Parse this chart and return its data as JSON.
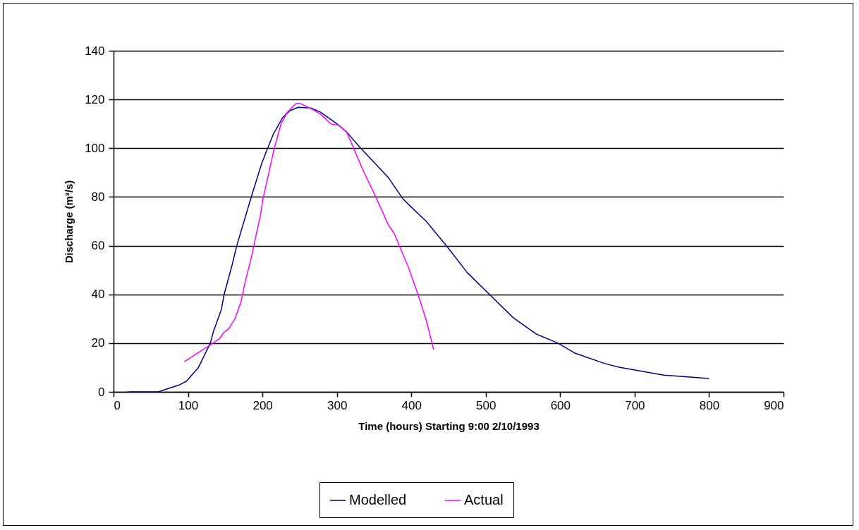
{
  "chart_data": {
    "type": "line",
    "xlabel": "Time (hours) Starting 9:00 2/10/1993",
    "ylabel": "Discharge (m³/s)",
    "xlim": [
      0,
      900
    ],
    "xticks": [
      0,
      100,
      200,
      300,
      400,
      500,
      600,
      700,
      800,
      900
    ],
    "ylim": [
      0,
      140
    ],
    "yticks": [
      0,
      20,
      40,
      60,
      80,
      100,
      120,
      140
    ],
    "grid": "y",
    "legend": "bottom",
    "series": [
      {
        "name": "Modelled",
        "color": "#000080",
        "x": [
          19,
          60,
          88,
          98,
          114,
          130,
          134,
          145,
          148.5,
          158,
          166,
          185,
          199,
          207,
          215,
          227,
          237,
          248,
          265,
          278,
          300,
          313,
          332,
          369,
          388,
          398,
          420,
          447,
          475,
          505,
          537,
          568,
          597,
          619,
          660,
          679,
          739,
          800
        ],
        "values": [
          0,
          0,
          2.8,
          4.4,
          10,
          20,
          24.6,
          34,
          40,
          50.6,
          60.5,
          80,
          93.7,
          100,
          106,
          112.5,
          115.4,
          116.8,
          116.5,
          114.8,
          110,
          106.7,
          100,
          88,
          79.5,
          76.4,
          70,
          60,
          49,
          40,
          30.4,
          23.7,
          20,
          16,
          11.6,
          10.1,
          6.9,
          5.5
        ]
      },
      {
        "name": "Actual",
        "color": "#ff00ff",
        "x": [
          95,
          126,
          142,
          148,
          155,
          163,
          171,
          177,
          185,
          193,
          197,
          201,
          212,
          216,
          225,
          234,
          245,
          251,
          265,
          278,
          292,
          303,
          313,
          322,
          334,
          353,
          369,
          377,
          395,
          409,
          420,
          430
        ],
        "values": [
          12.4,
          18.5,
          21.7,
          24.3,
          26,
          30,
          36.7,
          45.4,
          55,
          66.5,
          72,
          79.5,
          94.6,
          100,
          110,
          115,
          118.3,
          118.3,
          116.3,
          114,
          110,
          109.3,
          106.6,
          100.4,
          91.7,
          79.5,
          68.6,
          65,
          52,
          40,
          29.5,
          17.4
        ]
      }
    ]
  }
}
